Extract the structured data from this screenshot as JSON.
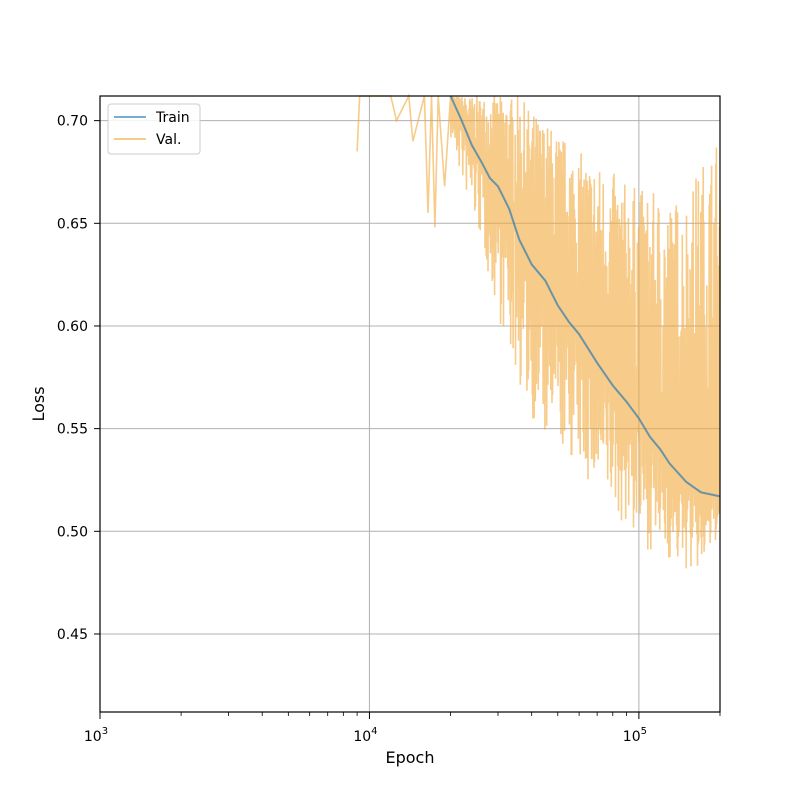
{
  "chart_data": {
    "type": "line",
    "title": "",
    "xlabel": "Epoch",
    "ylabel": "Loss",
    "xscale": "log",
    "xlim": [
      1000,
      200000
    ],
    "ylim": [
      0.412,
      0.712
    ],
    "grid": true,
    "legend_position": "top-left",
    "x_ticks": [
      {
        "value": 1000,
        "base": "10",
        "exp": "3"
      },
      {
        "value": 10000,
        "base": "10",
        "exp": "4"
      },
      {
        "value": 100000,
        "base": "10",
        "exp": "5"
      }
    ],
    "y_ticks": [
      {
        "value": 0.45,
        "label": "0.45"
      },
      {
        "value": 0.5,
        "label": "0.50"
      },
      {
        "value": 0.55,
        "label": "0.55"
      },
      {
        "value": 0.6,
        "label": "0.60"
      },
      {
        "value": 0.65,
        "label": "0.65"
      },
      {
        "value": 0.7,
        "label": "0.70"
      }
    ],
    "series": [
      {
        "name": "Train",
        "color": "#1f77b4",
        "x": [
          20000,
          22000,
          24000,
          26000,
          28000,
          30000,
          33000,
          36000,
          40000,
          45000,
          50000,
          55000,
          60000,
          70000,
          80000,
          90000,
          100000,
          110000,
          120000,
          130000,
          150000,
          170000,
          200000
        ],
        "y": [
          0.712,
          0.7,
          0.688,
          0.68,
          0.672,
          0.668,
          0.657,
          0.642,
          0.63,
          0.622,
          0.61,
          0.602,
          0.596,
          0.582,
          0.571,
          0.563,
          0.555,
          0.546,
          0.54,
          0.533,
          0.524,
          0.519,
          0.517
        ]
      },
      {
        "name": "Val.",
        "color": "#f2a93b",
        "x": [
          20000,
          22000,
          24000,
          26000,
          28000,
          30000,
          33000,
          36000,
          40000,
          45000,
          50000,
          55000,
          60000,
          70000,
          80000,
          90000,
          100000,
          110000,
          120000,
          130000,
          150000,
          170000,
          200000
        ],
        "y": [
          0.712,
          0.7,
          0.688,
          0.68,
          0.672,
          0.668,
          0.657,
          0.642,
          0.63,
          0.622,
          0.61,
          0.602,
          0.596,
          0.582,
          0.571,
          0.563,
          0.555,
          0.546,
          0.54,
          0.533,
          0.524,
          0.519,
          0.517
        ],
        "upper": [
          0.712,
          0.712,
          0.712,
          0.712,
          0.712,
          0.712,
          0.712,
          0.712,
          0.705,
          0.7,
          0.695,
          0.69,
          0.685,
          0.68,
          0.675,
          0.67,
          0.668,
          0.665,
          0.665,
          0.662,
          0.665,
          0.68,
          0.697
        ],
        "lower": [
          0.69,
          0.67,
          0.655,
          0.64,
          0.62,
          0.605,
          0.585,
          0.57,
          0.555,
          0.54,
          0.54,
          0.535,
          0.53,
          0.515,
          0.51,
          0.5,
          0.495,
          0.49,
          0.49,
          0.485,
          0.48,
          0.478,
          0.5
        ]
      }
    ]
  }
}
